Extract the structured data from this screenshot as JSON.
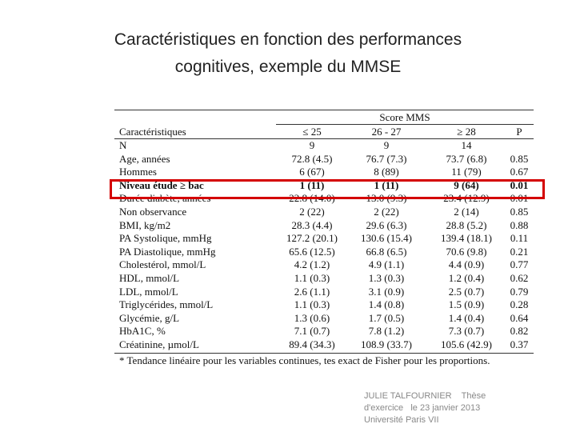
{
  "title": {
    "line1": "Caractéristiques en fonction des performances",
    "line2": "cognitives, exemple du MMSE"
  },
  "table": {
    "group_header": "Score MMS",
    "columns": [
      "Caractéristiques",
      "≤ 25",
      "26 - 27",
      "≥ 28",
      "P"
    ],
    "rows": [
      [
        "N",
        "9",
        "9",
        "14"
      ],
      [
        "Age, années",
        "72.8 (4.5)",
        "76.7 (7.3)",
        "73.7 (6.8)",
        "0.85"
      ],
      [
        "Hommes",
        "6 (67)",
        "8 (89)",
        "11 (79)",
        "0.67"
      ],
      [
        "Niveau étude ≥ bac",
        "1 (11)",
        "1 (11)",
        "9 (64)",
        "0.01"
      ],
      [
        "Durée diabète, années",
        "22.8 (14.0)",
        "13.0 (9.3)",
        "23.4 (12.9)",
        "0.01"
      ],
      [
        "Non observance",
        "2 (22)",
        "2 (22)",
        "2 (14)",
        "0.85"
      ],
      [
        "BMI, kg/m2",
        "28.3 (4.4)",
        "29.6 (6.3)",
        "28.8 (5.2)",
        "0.88"
      ],
      [
        "PA Systolique, mmHg",
        "127.2 (20.1)",
        "130.6 (15.4)",
        "139.4 (18.1)",
        "0.11"
      ],
      [
        "PA Diastolique, mmHg",
        "65.6 (12.5)",
        "66.8 (6.5)",
        "70.6 (9.8)",
        "0.21"
      ],
      [
        "Cholestérol, mmol/L",
        "4.2 (1.2)",
        "4.9 (1.1)",
        "4.4 (0.9)",
        "0.77"
      ],
      [
        "HDL, mmol/L",
        "1.1 (0.3)",
        "1.3 (0.3)",
        "1.2 (0.4)",
        "0.62"
      ],
      [
        "LDL, mmol/L",
        "2.6 (1.1)",
        "3.1 (0.9)",
        "2.5 (0.7)",
        "0.79"
      ],
      [
        "Triglycérides, mmol/L",
        "1.1 (0.3)",
        "1.4 (0.8)",
        "1.5 (0.9)",
        "0.28"
      ],
      [
        "Glycémie, g/L",
        "1.3 (0.6)",
        "1.7 (0.5)",
        "1.4 (0.4)",
        "0.64"
      ],
      [
        "HbA1C, %",
        "7.1 (0.7)",
        "7.8 (1.2)",
        "7.3 (0.7)",
        "0.82"
      ],
      [
        "Créatinine, µmol/L",
        "89.4 (34.3)",
        "108.9 (33.7)",
        "105.6 (42.9)",
        "0.37"
      ]
    ],
    "footnote": "* Tendance linéaire pour les variables continues, tes exact de Fisher pour les proportions."
  },
  "footer": {
    "line1": "JULIE TALFOURNIER    Thèse",
    "line2": "d'exercice   le 23 janvier 2013",
    "line3": "Université Paris VII"
  }
}
